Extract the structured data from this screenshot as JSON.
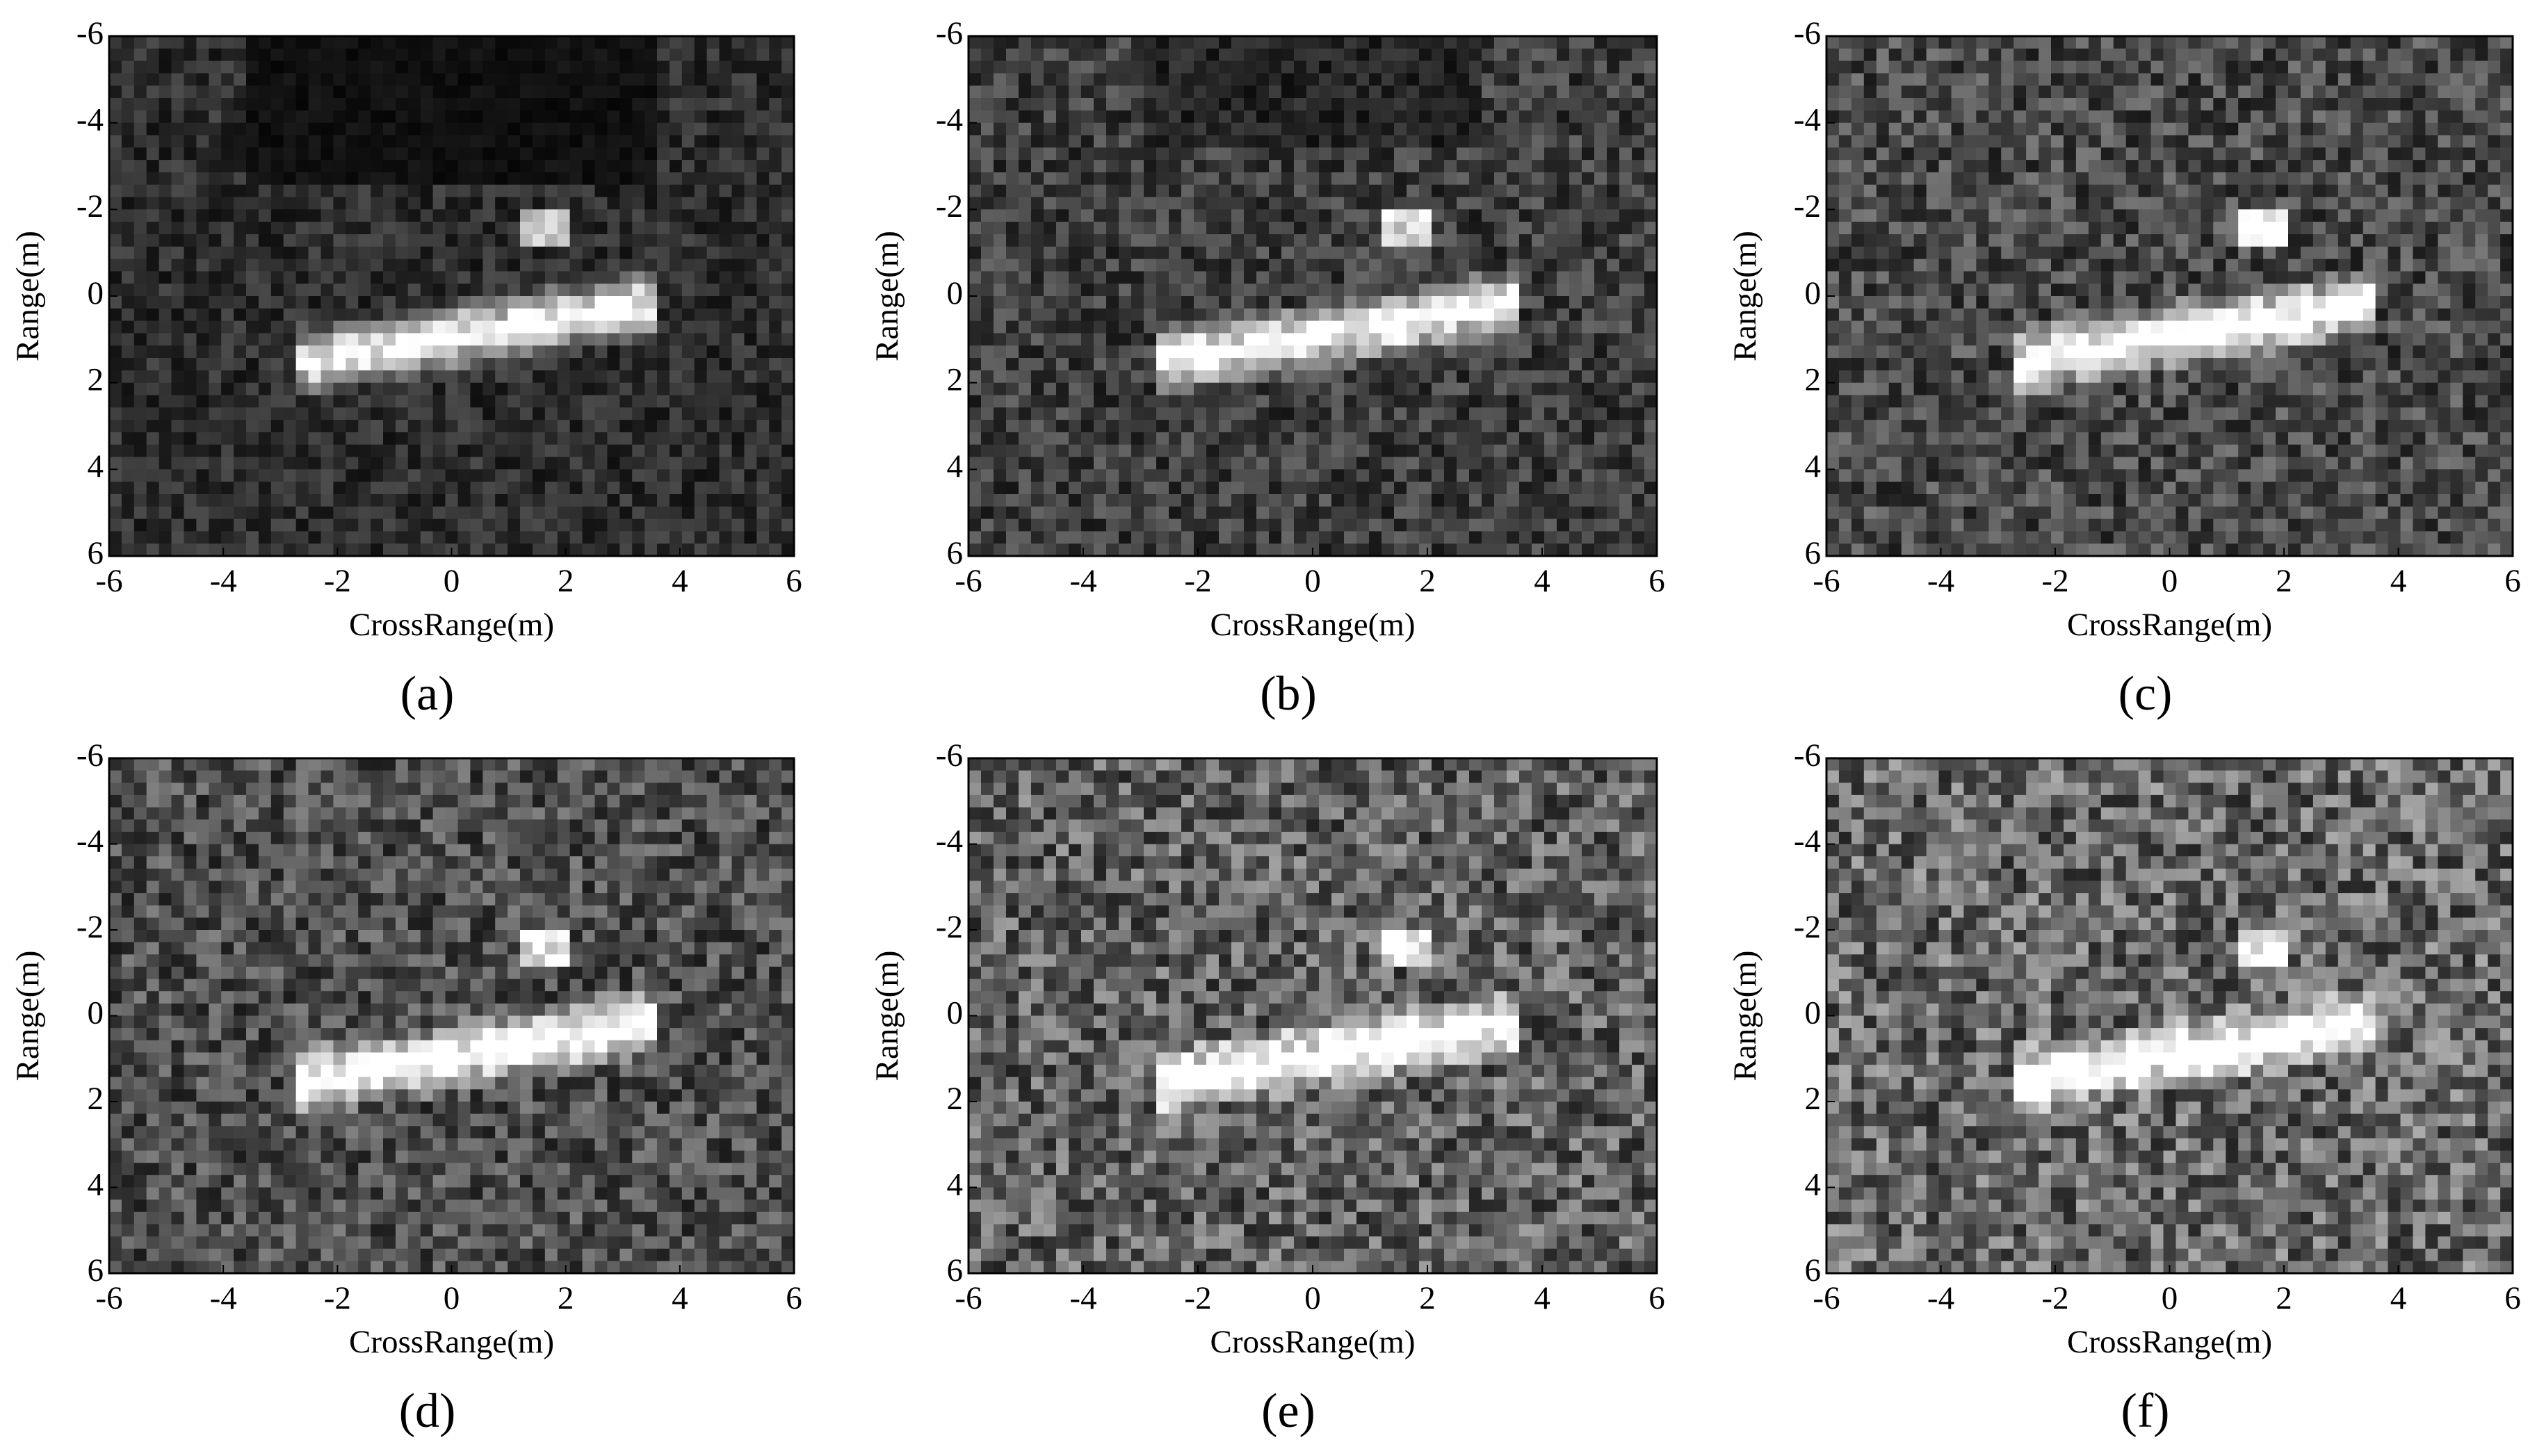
{
  "chart_data": [
    {
      "type": "image",
      "caption": "(a)",
      "xlabel": "CrossRange(m)",
      "ylabel": "Range(m)",
      "xlim": [
        -6,
        6
      ],
      "ylim": [
        6,
        -6
      ],
      "xticks": [
        -6,
        -4,
        -2,
        0,
        2,
        4,
        6
      ],
      "yticks": [
        -6,
        -4,
        -2,
        0,
        2,
        4,
        6
      ]
    },
    {
      "type": "image",
      "caption": "(b)",
      "xlabel": "CrossRange(m)",
      "ylabel": "Range(m)",
      "xlim": [
        -6,
        6
      ],
      "ylim": [
        6,
        -6
      ],
      "xticks": [
        -6,
        -4,
        -2,
        0,
        2,
        4,
        6
      ],
      "yticks": [
        -6,
        -4,
        -2,
        0,
        2,
        4,
        6
      ]
    },
    {
      "type": "image",
      "caption": "(c)",
      "xlabel": "CrossRange(m)",
      "ylabel": "Range(m)",
      "xlim": [
        -6,
        6
      ],
      "ylim": [
        6,
        -6
      ],
      "xticks": [
        -6,
        -4,
        -2,
        0,
        2,
        4,
        6
      ],
      "yticks": [
        -6,
        -4,
        -2,
        0,
        2,
        4,
        6
      ]
    },
    {
      "type": "image",
      "caption": "(d)",
      "xlabel": "CrossRange(m)",
      "ylabel": "Range(m)",
      "xlim": [
        -6,
        6
      ],
      "ylim": [
        6,
        -6
      ],
      "xticks": [
        -6,
        -4,
        -2,
        0,
        2,
        4,
        6
      ],
      "yticks": [
        -6,
        -4,
        -2,
        0,
        2,
        4,
        6
      ]
    },
    {
      "type": "image",
      "caption": "(e)",
      "xlabel": "CrossRange(m)",
      "ylabel": "Range(m)",
      "xlim": [
        -6,
        6
      ],
      "ylim": [
        6,
        -6
      ],
      "xticks": [
        -6,
        -4,
        -2,
        0,
        2,
        4,
        6
      ],
      "yticks": [
        -6,
        -4,
        -2,
        0,
        2,
        4,
        6
      ]
    },
    {
      "type": "image",
      "caption": "(f)",
      "xlabel": "CrossRange(m)",
      "ylabel": "Range(m)",
      "xlim": [
        -6,
        6
      ],
      "ylim": [
        6,
        -6
      ],
      "xticks": [
        -6,
        -4,
        -2,
        0,
        2,
        4,
        6
      ],
      "yticks": [
        -6,
        -4,
        -2,
        0,
        2,
        4,
        6
      ]
    }
  ]
}
